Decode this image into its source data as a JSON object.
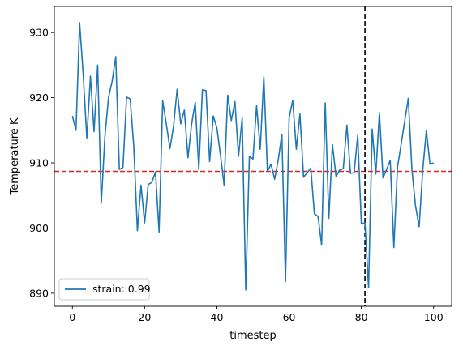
{
  "chart_data": {
    "type": "line",
    "title": "",
    "xlabel": "timestep",
    "ylabel": "Temperature K",
    "xlim": [
      -5,
      105
    ],
    "ylim": [
      888,
      934
    ],
    "xticks": [
      0,
      20,
      40,
      60,
      80,
      100
    ],
    "yticks": [
      890,
      900,
      910,
      920,
      930
    ],
    "grid": false,
    "legend_position": "lower-left",
    "series": [
      {
        "name": "strain: 0.99",
        "color": "#1f77b4",
        "x": [
          0,
          1,
          2,
          3,
          4,
          5,
          6,
          7,
          8,
          9,
          10,
          11,
          12,
          13,
          14,
          15,
          16,
          17,
          18,
          19,
          20,
          21,
          22,
          23,
          24,
          25,
          26,
          27,
          28,
          29,
          30,
          31,
          32,
          33,
          34,
          35,
          36,
          37,
          38,
          39,
          40,
          41,
          42,
          43,
          44,
          45,
          46,
          47,
          48,
          49,
          50,
          51,
          52,
          53,
          54,
          55,
          56,
          57,
          58,
          59,
          60,
          61,
          62,
          63,
          64,
          65,
          66,
          67,
          68,
          69,
          70,
          71,
          72,
          73,
          74,
          75,
          76,
          77,
          78,
          79,
          80,
          81,
          82,
          83,
          84,
          85,
          86,
          87,
          88,
          89,
          90,
          91,
          92,
          93,
          94,
          95,
          96,
          97,
          98,
          99,
          100
        ],
        "values": [
          917.2,
          915.0,
          931.5,
          923.5,
          913.8,
          923.3,
          914.8,
          925.0,
          903.8,
          914.0,
          920.0,
          922.5,
          926.3,
          909.0,
          909.3,
          920.1,
          919.8,
          912.5,
          899.6,
          906.6,
          900.8,
          906.7,
          907.0,
          908.6,
          899.4,
          919.5,
          916.0,
          912.2,
          915.6,
          921.3,
          916.0,
          918.1,
          910.8,
          915.9,
          919.3,
          909.0,
          921.2,
          921.1,
          910.2,
          917.2,
          915.4,
          911.2,
          906.6,
          920.4,
          916.5,
          919.4,
          911.0,
          916.9,
          890.5,
          911.0,
          910.6,
          918.8,
          912.1,
          923.2,
          908.7,
          909.8,
          907.5,
          910.5,
          914.4,
          891.8,
          916.9,
          919.6,
          912.1,
          917.5,
          907.8,
          908.5,
          909.2,
          902.2,
          901.8,
          897.4,
          919.2,
          901.5,
          912.8,
          907.9,
          908.9,
          909.1,
          915.8,
          908.4,
          908.5,
          914.2,
          900.7,
          900.8,
          890.9,
          915.2,
          908.3,
          917.7,
          907.7,
          909.0,
          910.4,
          897.0,
          909.3,
          912.8,
          916.4,
          919.9,
          909.0,
          903.4,
          900.2,
          908.9,
          915.0,
          909.8,
          910.0
        ]
      }
    ],
    "reference_lines": [
      {
        "orientation": "horizontal",
        "value": 908.7,
        "color": "#d62728",
        "style": "dashed"
      },
      {
        "orientation": "vertical",
        "value": 81,
        "color": "#000000",
        "style": "dashed"
      }
    ]
  }
}
